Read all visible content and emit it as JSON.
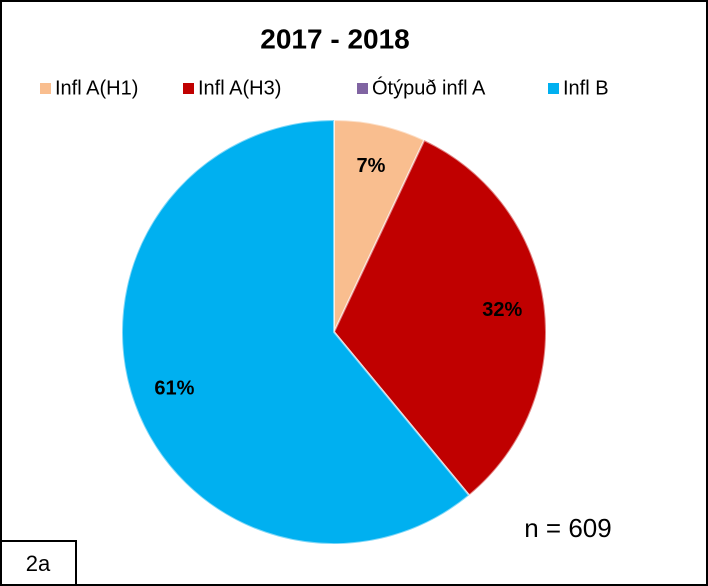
{
  "chart_data": {
    "type": "pie",
    "title": "2017 - 2018",
    "categories": [
      "Infl A(H1)",
      "Infl A(H3)",
      "Ótýpuð infl A",
      "Infl B"
    ],
    "values": [
      7,
      32,
      0,
      61
    ],
    "value_labels": [
      "7%",
      "32%",
      null,
      "61%"
    ],
    "colors": [
      "#f9be8f",
      "#c00000",
      "#8064a2",
      "#00b0f0"
    ],
    "legend": "top",
    "annotation": "n = 609",
    "panel_label": "2a"
  }
}
